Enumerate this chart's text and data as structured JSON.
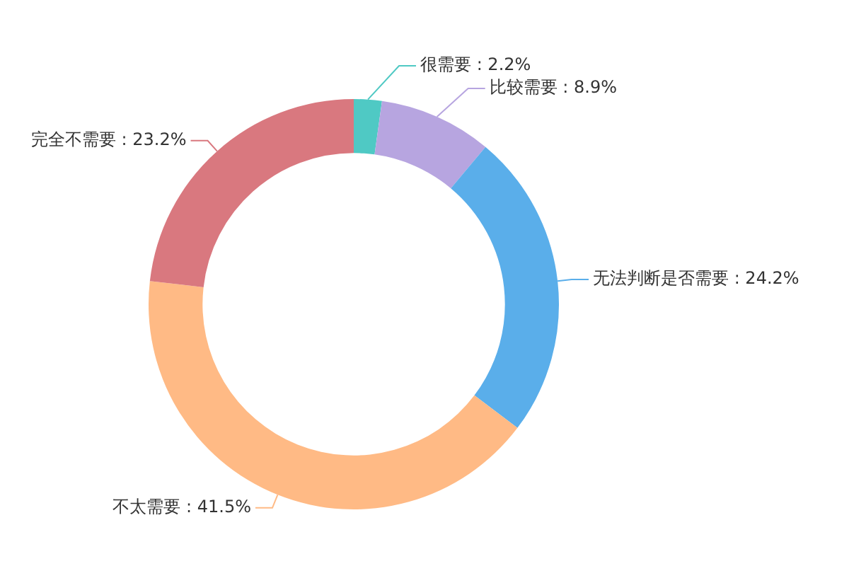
{
  "chart_data": {
    "type": "donut",
    "categories": [
      "很需要",
      "比较需要",
      "无法判断是否需要",
      "不太需要",
      "完全不需要"
    ],
    "values": [
      2.2,
      8.9,
      24.2,
      41.5,
      23.2
    ],
    "colors": [
      "#4fc9c4",
      "#b7a5e0",
      "#5aaeea",
      "#ffba85",
      "#d9787f"
    ],
    "value_labels": [
      "2.2%",
      "8.9%",
      "24.2%",
      "41.5%",
      "23.2%"
    ],
    "legend": false
  }
}
